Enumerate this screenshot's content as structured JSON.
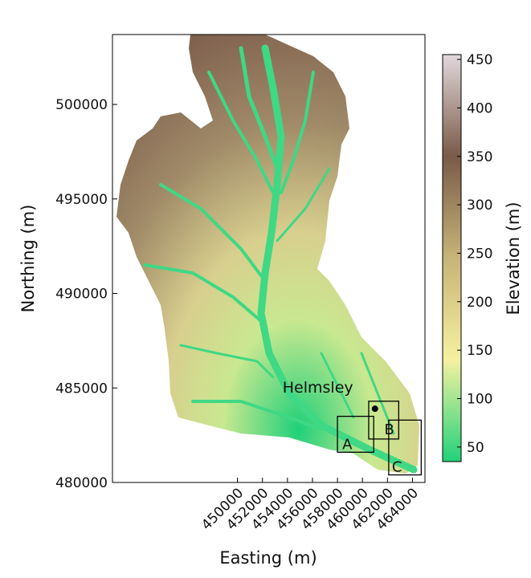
{
  "map": {
    "type": "elevation-map",
    "xlabel": "Easting (m)",
    "ylabel": "Northing (m)",
    "xlim": [
      440000,
      465000
    ],
    "ylim": [
      480000,
      503700
    ],
    "xticks": [
      {
        "value": 450000,
        "label": "450000"
      },
      {
        "value": 452000,
        "label": "452000"
      },
      {
        "value": 454000,
        "label": "454000"
      },
      {
        "value": 456000,
        "label": "456000"
      },
      {
        "value": 458000,
        "label": "458000"
      },
      {
        "value": 460000,
        "label": "460000"
      },
      {
        "value": 462000,
        "label": "462000"
      },
      {
        "value": 464000,
        "label": "464000"
      }
    ],
    "yticks": [
      {
        "value": 500000,
        "label": "500000"
      },
      {
        "value": 495000,
        "label": "495000"
      },
      {
        "value": 490000,
        "label": "490000"
      },
      {
        "value": 485000,
        "label": "485000"
      },
      {
        "value": 480000,
        "label": "480000"
      }
    ],
    "colorbar": {
      "label": "Elevation (m)",
      "range": [
        35,
        455
      ],
      "ticks": [
        {
          "value": 50,
          "label": "50"
        },
        {
          "value": 100,
          "label": "100"
        },
        {
          "value": 150,
          "label": "150"
        },
        {
          "value": 200,
          "label": "200"
        },
        {
          "value": 250,
          "label": "250"
        },
        {
          "value": 300,
          "label": "300"
        },
        {
          "value": 350,
          "label": "350"
        },
        {
          "value": 400,
          "label": "400"
        },
        {
          "value": 450,
          "label": "450"
        }
      ],
      "colors": [
        "#22d27a",
        "#f5f1a0",
        "#c8b478",
        "#7a5a48",
        "#e0d8dc"
      ]
    },
    "place": {
      "name": "Helmsley",
      "easting": 461000,
      "northing": 483900
    },
    "regions": [
      {
        "label": "A",
        "x0": 458000,
        "x1": 460900,
        "y0": 481600,
        "y1": 483500
      },
      {
        "label": "B",
        "x0": 460500,
        "x1": 462900,
        "y0": 482300,
        "y1": 484300
      },
      {
        "label": "C",
        "x0": 462100,
        "x1": 464700,
        "y0": 480400,
        "y1": 483300
      }
    ]
  }
}
